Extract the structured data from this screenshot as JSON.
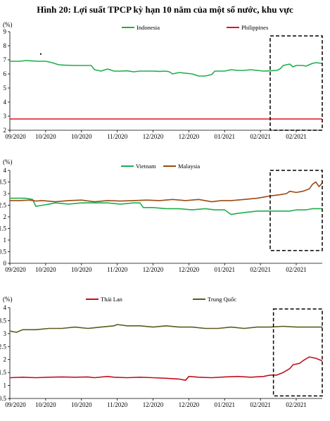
{
  "figure_title": "Hình 20: Lợi suất TPCP kỳ hạn 10 năm của một số nước, khu vực",
  "chart_data": [
    {
      "type": "line",
      "unit_label": "(%)",
      "ylim": [
        2,
        9
      ],
      "yticks": [
        2,
        3,
        4,
        5,
        6,
        7,
        8,
        9
      ],
      "xlim": [
        0,
        96
      ],
      "x_ticks": [
        {
          "label": "09/2020",
          "x": 0
        },
        {
          "label": "10/2020",
          "x": 11
        },
        {
          "label": "10/2020",
          "x": 22
        },
        {
          "label": "11/2020",
          "x": 33
        },
        {
          "label": "12/2020",
          "x": 44
        },
        {
          "label": "12/2020",
          "x": 55
        },
        {
          "label": "01/2021",
          "x": 66
        },
        {
          "label": "02/2021",
          "x": 77
        },
        {
          "label": "02/2021",
          "x": 88
        }
      ],
      "grid": false,
      "legend_position": "top",
      "highlight_box": {
        "x": [
          80,
          96
        ],
        "y": [
          2,
          8.7
        ]
      },
      "series": [
        {
          "name": "Indonesia",
          "color": "#1fae4b",
          "points": [
            [
              0,
              6.9
            ],
            [
              3,
              6.9
            ],
            [
              5,
              6.95
            ],
            [
              7,
              6.92
            ],
            [
              9,
              6.9
            ],
            [
              11,
              6.9
            ],
            [
              13,
              6.8
            ],
            [
              15,
              6.65
            ],
            [
              17,
              6.62
            ],
            [
              20,
              6.6
            ],
            [
              23,
              6.6
            ],
            [
              25,
              6.6
            ],
            [
              26,
              6.3
            ],
            [
              28,
              6.2
            ],
            [
              30,
              6.35
            ],
            [
              32,
              6.2
            ],
            [
              34,
              6.2
            ],
            [
              36,
              6.22
            ],
            [
              38,
              6.15
            ],
            [
              40,
              6.2
            ],
            [
              42,
              6.2
            ],
            [
              44,
              6.2
            ],
            [
              46,
              6.18
            ],
            [
              48,
              6.2
            ],
            [
              49,
              6.15
            ],
            [
              50,
              6.0
            ],
            [
              52,
              6.1
            ],
            [
              54,
              6.05
            ],
            [
              56,
              6.0
            ],
            [
              58,
              5.85
            ],
            [
              60,
              5.85
            ],
            [
              62,
              5.95
            ],
            [
              63,
              6.2
            ],
            [
              66,
              6.2
            ],
            [
              68,
              6.3
            ],
            [
              70,
              6.25
            ],
            [
              72,
              6.25
            ],
            [
              74,
              6.3
            ],
            [
              76,
              6.25
            ],
            [
              78,
              6.2
            ],
            [
              80,
              6.22
            ],
            [
              82,
              6.25
            ],
            [
              83,
              6.35
            ],
            [
              84,
              6.6
            ],
            [
              86,
              6.7
            ],
            [
              87,
              6.5
            ],
            [
              88,
              6.6
            ],
            [
              90,
              6.6
            ],
            [
              91,
              6.55
            ],
            [
              93,
              6.75
            ],
            [
              94,
              6.8
            ],
            [
              96,
              6.75
            ]
          ]
        },
        {
          "name": "Philippines",
          "color": "#e0141e",
          "points": [
            [
              0,
              2.8
            ],
            [
              96,
              2.8
            ]
          ]
        }
      ],
      "annotations": [
        {
          "text": "•",
          "color": "#1f3fbf",
          "x": 9.5,
          "y": 7.25
        }
      ]
    },
    {
      "type": "line",
      "unit_label": "(%)",
      "ylim": [
        0,
        4
      ],
      "yticks": [
        0,
        0.5,
        1,
        1.5,
        2,
        2.5,
        3,
        3.5,
        4
      ],
      "xlim": [
        0,
        96
      ],
      "x_ticks": [
        {
          "label": "09/2020",
          "x": 0
        },
        {
          "label": "10/2020",
          "x": 11
        },
        {
          "label": "10/2020",
          "x": 22
        },
        {
          "label": "11/2020",
          "x": 33
        },
        {
          "label": "12/2020",
          "x": 44
        },
        {
          "label": "12/2020",
          "x": 55
        },
        {
          "label": "01/2021",
          "x": 66
        },
        {
          "label": "02/2021",
          "x": 77
        },
        {
          "label": "02/2021",
          "x": 88
        }
      ],
      "grid": false,
      "legend_position": "top",
      "highlight_box": {
        "x": [
          80,
          96
        ],
        "y": [
          0.55,
          4.0
        ]
      },
      "series": [
        {
          "name": "Vietnam",
          "color": "#1fae4b",
          "points": [
            [
              0,
              2.8
            ],
            [
              3,
              2.8
            ],
            [
              5,
              2.8
            ],
            [
              7,
              2.75
            ],
            [
              8,
              2.45
            ],
            [
              10,
              2.5
            ],
            [
              12,
              2.55
            ],
            [
              14,
              2.6
            ],
            [
              18,
              2.55
            ],
            [
              22,
              2.6
            ],
            [
              26,
              2.6
            ],
            [
              30,
              2.6
            ],
            [
              34,
              2.55
            ],
            [
              38,
              2.6
            ],
            [
              40,
              2.6
            ],
            [
              41,
              2.4
            ],
            [
              44,
              2.4
            ],
            [
              48,
              2.35
            ],
            [
              52,
              2.35
            ],
            [
              56,
              2.3
            ],
            [
              60,
              2.35
            ],
            [
              63,
              2.3
            ],
            [
              66,
              2.3
            ],
            [
              67,
              2.2
            ],
            [
              68,
              2.1
            ],
            [
              70,
              2.15
            ],
            [
              73,
              2.2
            ],
            [
              76,
              2.25
            ],
            [
              80,
              2.25
            ],
            [
              84,
              2.25
            ],
            [
              86,
              2.25
            ],
            [
              88,
              2.3
            ],
            [
              91,
              2.3
            ],
            [
              93,
              2.35
            ],
            [
              96,
              2.35
            ]
          ]
        },
        {
          "name": "Malaysia",
          "color": "#9b4a12",
          "points": [
            [
              0,
              2.7
            ],
            [
              3,
              2.7
            ],
            [
              6,
              2.72
            ],
            [
              8,
              2.68
            ],
            [
              10,
              2.7
            ],
            [
              14,
              2.65
            ],
            [
              18,
              2.7
            ],
            [
              22,
              2.72
            ],
            [
              26,
              2.65
            ],
            [
              30,
              2.7
            ],
            [
              34,
              2.68
            ],
            [
              38,
              2.7
            ],
            [
              42,
              2.72
            ],
            [
              46,
              2.7
            ],
            [
              50,
              2.75
            ],
            [
              54,
              2.7
            ],
            [
              58,
              2.75
            ],
            [
              62,
              2.65
            ],
            [
              65,
              2.7
            ],
            [
              68,
              2.7
            ],
            [
              72,
              2.75
            ],
            [
              76,
              2.8
            ],
            [
              80,
              2.9
            ],
            [
              83,
              2.95
            ],
            [
              85,
              3.0
            ],
            [
              86,
              3.1
            ],
            [
              88,
              3.05
            ],
            [
              90,
              3.1
            ],
            [
              92,
              3.2
            ],
            [
              93,
              3.4
            ],
            [
              94,
              3.5
            ],
            [
              95,
              3.3
            ],
            [
              96,
              3.45
            ]
          ]
        }
      ]
    },
    {
      "type": "line",
      "unit_label": "(%)",
      "ylim": [
        0.5,
        4
      ],
      "yticks": [
        0.5,
        1,
        1.5,
        2,
        2.5,
        3,
        3.5,
        4
      ],
      "xlim": [
        0,
        96
      ],
      "x_ticks": [
        {
          "label": "09/2020",
          "x": 0
        },
        {
          "label": "10/2020",
          "x": 11
        },
        {
          "label": "10/2020",
          "x": 22
        },
        {
          "label": "11/2020",
          "x": 33
        },
        {
          "label": "12/2020",
          "x": 44
        },
        {
          "label": "12/2020",
          "x": 55
        },
        {
          "label": "01/2021",
          "x": 66
        },
        {
          "label": "02/2021",
          "x": 77
        },
        {
          "label": "02/2021",
          "x": 88
        }
      ],
      "grid": false,
      "legend_position": "top",
      "highlight_box": {
        "x": [
          81,
          96
        ],
        "y": [
          0.6,
          3.95
        ]
      },
      "series": [
        {
          "name": "Thái Lan",
          "color": "#c0111f",
          "points": [
            [
              0,
              1.3
            ],
            [
              4,
              1.32
            ],
            [
              8,
              1.3
            ],
            [
              12,
              1.32
            ],
            [
              16,
              1.33
            ],
            [
              20,
              1.32
            ],
            [
              24,
              1.33
            ],
            [
              26,
              1.3
            ],
            [
              30,
              1.35
            ],
            [
              32,
              1.32
            ],
            [
              36,
              1.3
            ],
            [
              40,
              1.32
            ],
            [
              44,
              1.3
            ],
            [
              48,
              1.28
            ],
            [
              52,
              1.25
            ],
            [
              54,
              1.2
            ],
            [
              55,
              1.35
            ],
            [
              58,
              1.32
            ],
            [
              62,
              1.3
            ],
            [
              66,
              1.33
            ],
            [
              70,
              1.35
            ],
            [
              74,
              1.32
            ],
            [
              78,
              1.35
            ],
            [
              80,
              1.4
            ],
            [
              82,
              1.4
            ],
            [
              84,
              1.5
            ],
            [
              86,
              1.65
            ],
            [
              87,
              1.8
            ],
            [
              89,
              1.85
            ],
            [
              90,
              1.95
            ],
            [
              92,
              2.1
            ],
            [
              94,
              2.05
            ],
            [
              96,
              1.95
            ]
          ]
        },
        {
          "name": "Trung Quốc",
          "color": "#5b5b1e",
          "points": [
            [
              0,
              3.1
            ],
            [
              2,
              3.05
            ],
            [
              4,
              3.15
            ],
            [
              8,
              3.15
            ],
            [
              12,
              3.2
            ],
            [
              16,
              3.2
            ],
            [
              20,
              3.25
            ],
            [
              24,
              3.2
            ],
            [
              28,
              3.25
            ],
            [
              32,
              3.3
            ],
            [
              33,
              3.35
            ],
            [
              36,
              3.3
            ],
            [
              40,
              3.3
            ],
            [
              44,
              3.25
            ],
            [
              48,
              3.3
            ],
            [
              52,
              3.25
            ],
            [
              56,
              3.25
            ],
            [
              60,
              3.2
            ],
            [
              64,
              3.2
            ],
            [
              68,
              3.25
            ],
            [
              72,
              3.2
            ],
            [
              76,
              3.25
            ],
            [
              80,
              3.25
            ],
            [
              84,
              3.28
            ],
            [
              88,
              3.25
            ],
            [
              92,
              3.25
            ],
            [
              96,
              3.25
            ]
          ]
        }
      ]
    }
  ]
}
